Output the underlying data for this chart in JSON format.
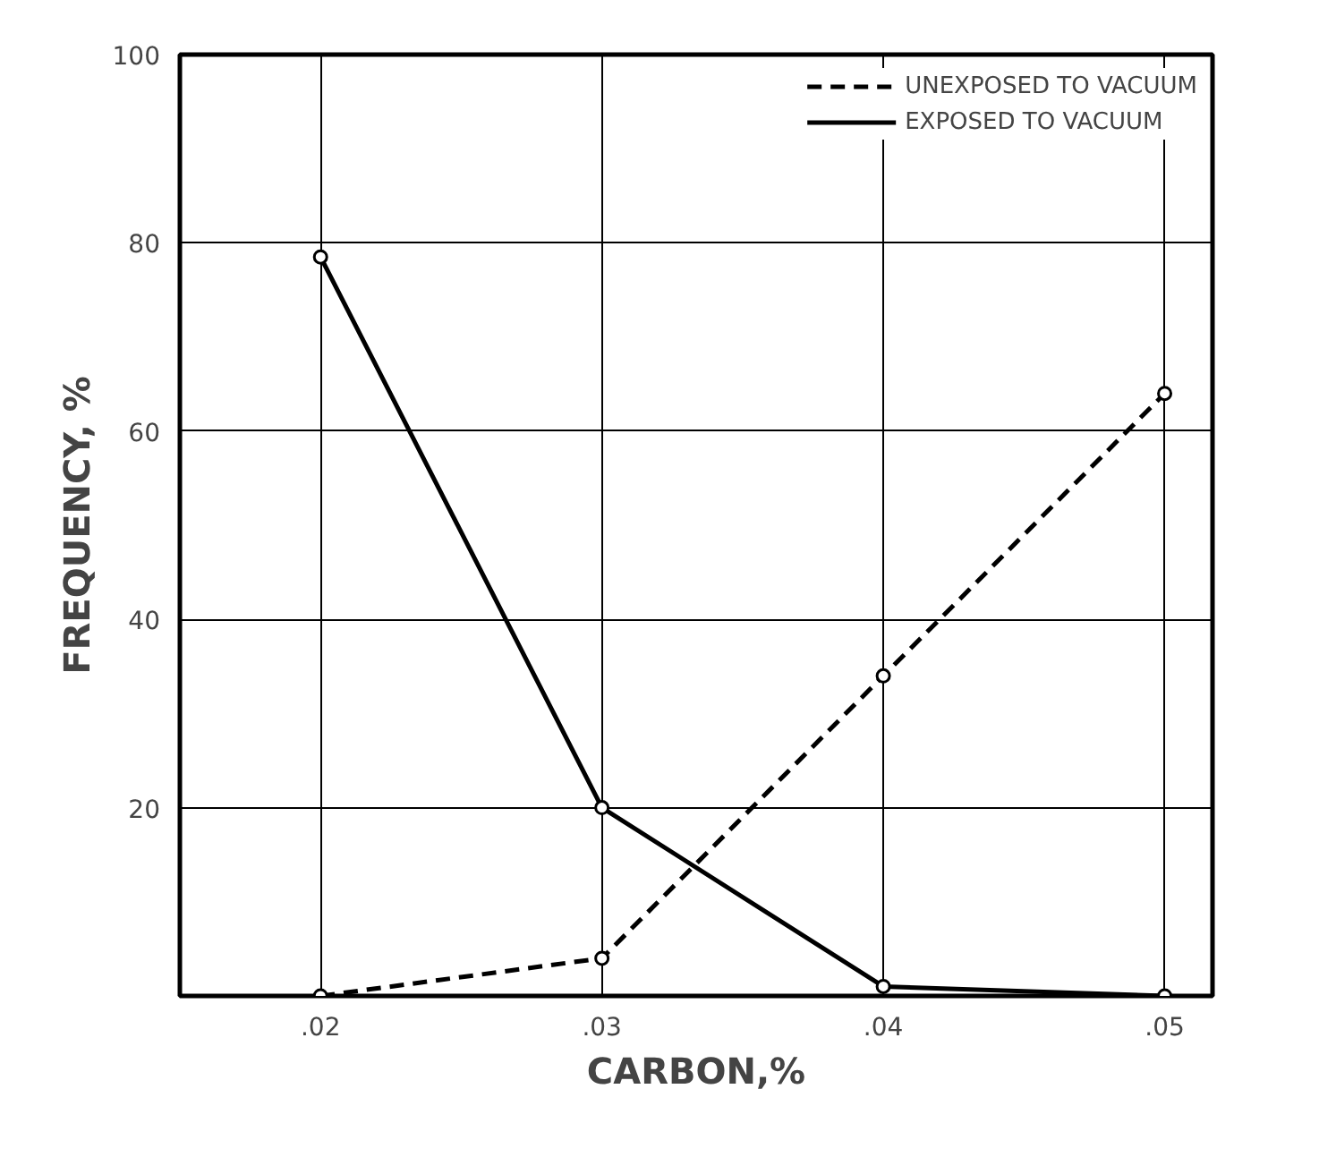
{
  "chart_data": {
    "type": "line",
    "xlabel": "CARBON,%",
    "ylabel": "FREQUENCY, %",
    "x": [
      0.02,
      0.03,
      0.04,
      0.05
    ],
    "series": [
      {
        "name": "UNEXPOSED TO VACUUM",
        "color": "#000000",
        "line_style": "dashed",
        "values": [
          0,
          4,
          34,
          64
        ]
      },
      {
        "name": "EXPOSED TO VACUUM",
        "color": "#000000",
        "line_style": "solid",
        "values": [
          78.5,
          20,
          1,
          0
        ]
      }
    ],
    "xlim": [
      0.015,
      0.0517
    ],
    "ylim": [
      0,
      100
    ],
    "xticks": [
      {
        "value": 0.02,
        "label": ".02"
      },
      {
        "value": 0.03,
        "label": ".03"
      },
      {
        "value": 0.04,
        "label": ".04"
      },
      {
        "value": 0.05,
        "label": ".05"
      }
    ],
    "yticks": [
      20,
      40,
      60,
      80,
      100
    ],
    "grid": true,
    "legend": "top right",
    "marker": "circle"
  }
}
